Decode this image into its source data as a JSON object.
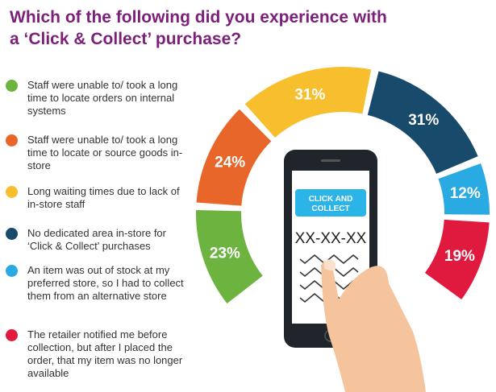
{
  "chart_data": {
    "type": "donut",
    "title": "Which of the following did you experience with a ‘Click & Collect’ purchase?",
    "categories": [
      "Staff were unable to/ took a long time to locate orders on internal systems",
      "Staff were unable to/ took a long time to locate or source goods in-store",
      "Long waiting times due to lack of in-store staff",
      "No dedicated area in-store for ‘Click & Collect’ purchases",
      "An item was out of stock at my preferred store, so I had to collect them from an alternative store",
      "The retailer notified me before collection, but after I placed the order, that my item was no longer available"
    ],
    "values": [
      23,
      24,
      31,
      31,
      12,
      19
    ],
    "value_labels": [
      "23%",
      "24%",
      "31%",
      "31%",
      "12%",
      "19%"
    ],
    "colors": [
      "#6db33f",
      "#e8662a",
      "#f7bf2e",
      "#184a6b",
      "#2aaae2",
      "#e0193f"
    ]
  },
  "illustration": {
    "button": [
      "CLICK AND",
      "COLLECT"
    ],
    "code": "XX-XX-XX"
  }
}
